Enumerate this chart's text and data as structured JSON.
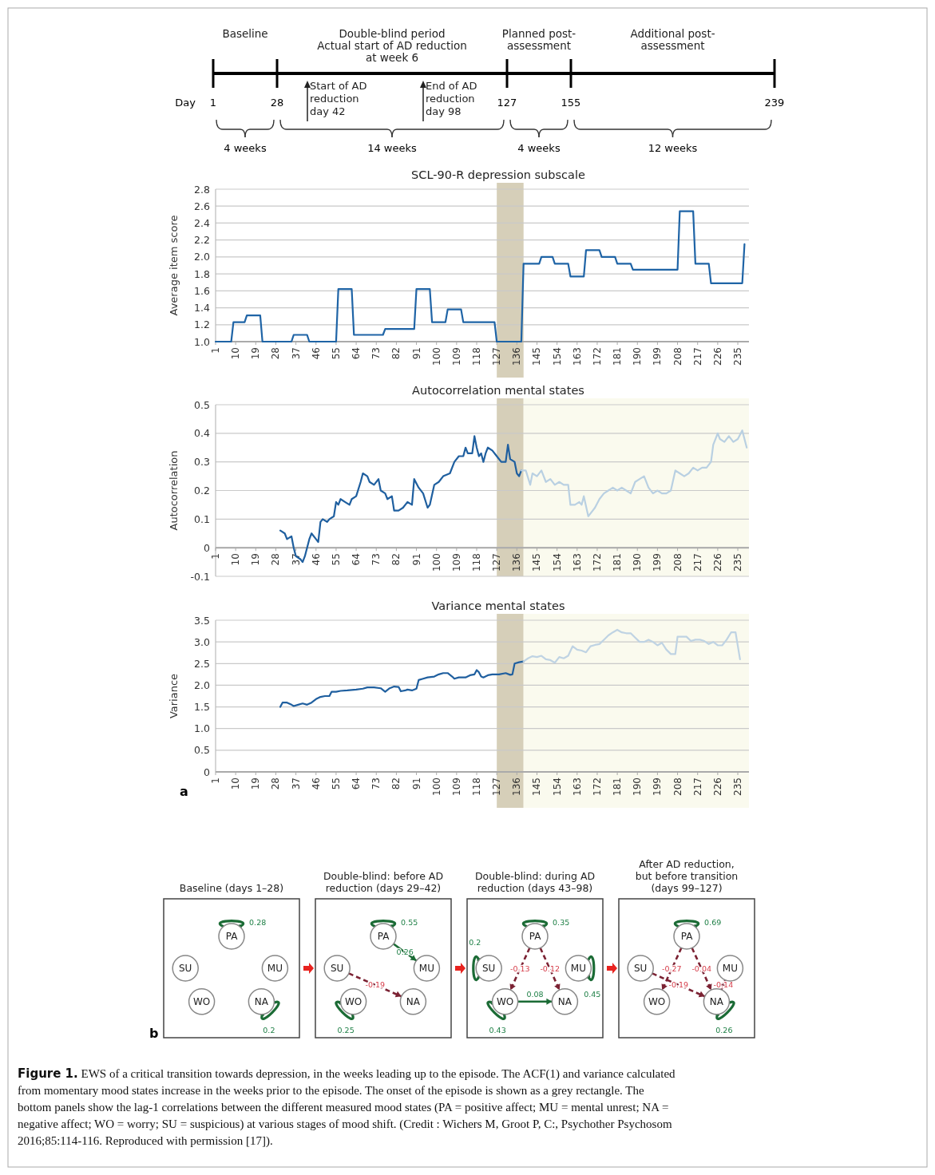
{
  "chart_data": [
    {
      "type": "other",
      "xlabel": "Day",
      "annotations": [
        "Baseline",
        "Double-blind period\nActual start of AD reduction\nat week 6",
        "Planned post-\nassessment",
        "Additional post-\nassessment",
        "Start of AD\nreduction\nday 42",
        "End of AD\nreduction\nday 98",
        "1",
        "28",
        "127",
        "155",
        "239",
        "4 weeks",
        "14 weeks",
        "4 weeks",
        "12 weeks"
      ]
    },
    {
      "type": "line",
      "title": "SCL-90-R depression subscale",
      "ylabel": "Average item score",
      "xlim": [
        1,
        240
      ],
      "xticks": [
        1,
        10,
        19,
        28,
        37,
        46,
        55,
        64,
        73,
        82,
        91,
        100,
        109,
        118,
        127,
        136,
        145,
        154,
        163,
        172,
        181,
        190,
        199,
        208,
        217,
        226,
        235
      ],
      "ylim": [
        1,
        2.8
      ],
      "yticks": [
        {
          "value": 1,
          "label": "1.0"
        },
        {
          "value": 1.2,
          "label": "1.2"
        },
        {
          "value": 1.4,
          "label": "1.4"
        },
        {
          "value": 1.6,
          "label": "1.6"
        },
        {
          "value": 1.8,
          "label": "1.8"
        },
        {
          "value": 2,
          "label": "2.0"
        },
        {
          "value": 2.2,
          "label": "2.2"
        },
        {
          "value": 2.4,
          "label": "2.4"
        },
        {
          "value": 2.6,
          "label": "2.6"
        },
        {
          "value": 2.8,
          "label": "2.8"
        }
      ],
      "grid": "y",
      "bands": [
        {
          "axis": "x",
          "from": 127,
          "to": 139,
          "color": "#d6cfb9"
        }
      ],
      "series": [
        {
          "color": "#1f64a6",
          "x": [
            1,
            8,
            9,
            14,
            15,
            21,
            22,
            35,
            36,
            42,
            43,
            55,
            56,
            62,
            63,
            76,
            77,
            90,
            91,
            97,
            98,
            104,
            105,
            111,
            112,
            126,
            127,
            138,
            139,
            146,
            147,
            152,
            153,
            159,
            160,
            166,
            167,
            173,
            174,
            180,
            181,
            187,
            188,
            208,
            209,
            215,
            216,
            222,
            223,
            237,
            238
          ],
          "values": [
            1,
            1,
            1.23,
            1.23,
            1.31,
            1.31,
            1,
            1,
            1.08,
            1.08,
            1,
            1,
            1.62,
            1.62,
            1.08,
            1.08,
            1.15,
            1.15,
            1.62,
            1.62,
            1.23,
            1.23,
            1.38,
            1.38,
            1.23,
            1.23,
            1,
            1,
            1.92,
            1.92,
            2,
            2,
            1.92,
            1.92,
            1.77,
            1.77,
            2.08,
            2.08,
            2,
            2,
            1.92,
            1.92,
            1.85,
            1.85,
            2.54,
            2.54,
            1.92,
            1.92,
            1.69,
            1.69,
            2.15
          ]
        }
      ]
    },
    {
      "type": "line",
      "title": "Autocorrelation mental states",
      "ylabel": "Autocorrelation",
      "xlim": [
        1,
        240
      ],
      "xticks": [
        1,
        10,
        19,
        28,
        37,
        46,
        55,
        64,
        73,
        82,
        91,
        100,
        109,
        118,
        127,
        136,
        145,
        154,
        163,
        172,
        181,
        190,
        199,
        208,
        217,
        226,
        235
      ],
      "ylim": [
        -0.1,
        0.5
      ],
      "yticks": [
        -0.1,
        0,
        0.1,
        0.2,
        0.3,
        0.4,
        0.5
      ],
      "grid": "y",
      "bands": [
        {
          "axis": "x",
          "from": 127,
          "to": 139,
          "color": "#d6cfb9"
        },
        {
          "axis": "x",
          "from": 139,
          "to": 240,
          "color": "#fafaee"
        }
      ],
      "series": [
        {
          "color": "#1f5f9f",
          "x": [
            30,
            32,
            33,
            35,
            36,
            37,
            39,
            40,
            41,
            43,
            44,
            46,
            47,
            48,
            49,
            51,
            52,
            54,
            55,
            56,
            57,
            59,
            61,
            62,
            64,
            66,
            67,
            69,
            70,
            72,
            74,
            75,
            77,
            78,
            80,
            81,
            83,
            85,
            87,
            89,
            90,
            92,
            94,
            96,
            97,
            99,
            101,
            103,
            106,
            108,
            110,
            112,
            113,
            114,
            116,
            117,
            118,
            119,
            120,
            121,
            122,
            123,
            125,
            127,
            129,
            131,
            132,
            133,
            135,
            136,
            137,
            138
          ],
          "values": [
            0.06,
            0.05,
            0.03,
            0.04,
            0,
            -0.03,
            -0.04,
            -0.05,
            -0.03,
            0.03,
            0.05,
            0.03,
            0.02,
            0.09,
            0.1,
            0.09,
            0.1,
            0.11,
            0.16,
            0.15,
            0.17,
            0.16,
            0.15,
            0.17,
            0.18,
            0.23,
            0.26,
            0.25,
            0.23,
            0.22,
            0.24,
            0.2,
            0.19,
            0.17,
            0.18,
            0.13,
            0.13,
            0.14,
            0.16,
            0.15,
            0.24,
            0.21,
            0.19,
            0.14,
            0.15,
            0.22,
            0.23,
            0.25,
            0.26,
            0.3,
            0.32,
            0.32,
            0.35,
            0.33,
            0.33,
            0.39,
            0.35,
            0.32,
            0.33,
            0.3,
            0.33,
            0.35,
            0.34,
            0.32,
            0.3,
            0.3,
            0.36,
            0.31,
            0.3,
            0.26,
            0.25,
            0.27
          ]
        },
        {
          "color": "#b9d0e2",
          "x": [
            138,
            140,
            142,
            143,
            145,
            147,
            149,
            151,
            153,
            155,
            157,
            159,
            160,
            162,
            164,
            165,
            166,
            168,
            170,
            171,
            173,
            175,
            177,
            179,
            181,
            183,
            185,
            187,
            189,
            191,
            193,
            195,
            197,
            199,
            201,
            203,
            205,
            207,
            209,
            211,
            213,
            215,
            217,
            219,
            221,
            223,
            224,
            226,
            227,
            229,
            231,
            233,
            235,
            237,
            239
          ],
          "values": [
            0.27,
            0.27,
            0.22,
            0.26,
            0.25,
            0.27,
            0.23,
            0.24,
            0.22,
            0.23,
            0.22,
            0.22,
            0.15,
            0.15,
            0.16,
            0.15,
            0.18,
            0.11,
            0.13,
            0.14,
            0.17,
            0.19,
            0.2,
            0.21,
            0.2,
            0.21,
            0.2,
            0.19,
            0.23,
            0.24,
            0.25,
            0.21,
            0.19,
            0.2,
            0.19,
            0.19,
            0.2,
            0.27,
            0.26,
            0.25,
            0.26,
            0.28,
            0.27,
            0.28,
            0.28,
            0.3,
            0.36,
            0.4,
            0.38,
            0.37,
            0.39,
            0.37,
            0.38,
            0.41,
            0.35
          ]
        }
      ]
    },
    {
      "type": "line",
      "title": "Variance mental states",
      "ylabel": "Variance",
      "xlim": [
        1,
        240
      ],
      "xticks": [
        1,
        10,
        19,
        28,
        37,
        46,
        55,
        64,
        73,
        82,
        91,
        100,
        109,
        118,
        127,
        136,
        145,
        154,
        163,
        172,
        181,
        190,
        199,
        208,
        217,
        226,
        235
      ],
      "ylim": [
        0,
        3.5
      ],
      "yticks": [
        0,
        {
          "value": 0.5,
          "label": "0.5"
        },
        {
          "value": 1,
          "label": "1.0"
        },
        {
          "value": 1.5,
          "label": "1.5"
        },
        {
          "value": 2,
          "label": "2.0"
        },
        {
          "value": 2.5,
          "label": "2.5"
        },
        {
          "value": 3,
          "label": "3.0"
        },
        {
          "value": 3.5,
          "label": "3.5"
        }
      ],
      "grid": "y",
      "bands": [
        {
          "axis": "x",
          "from": 127,
          "to": 139,
          "color": "#d6cfb9"
        },
        {
          "axis": "x",
          "from": 139,
          "to": 240,
          "color": "#fafaee"
        }
      ],
      "annotations": [
        "a"
      ],
      "series": [
        {
          "color": "#1f5f9f",
          "x": [
            30,
            31,
            33,
            35,
            36,
            38,
            40,
            42,
            44,
            46,
            48,
            50,
            52,
            53,
            55,
            57,
            60,
            64,
            67,
            69,
            72,
            75,
            77,
            79,
            81,
            83,
            84,
            86,
            87,
            89,
            91,
            92,
            94,
            96,
            99,
            101,
            103,
            105,
            107,
            108,
            110,
            113,
            115,
            117,
            118,
            119,
            120,
            121,
            123,
            125,
            128,
            131,
            133,
            134,
            135,
            137,
            139
          ],
          "values": [
            1.5,
            1.6,
            1.6,
            1.55,
            1.52,
            1.55,
            1.58,
            1.55,
            1.6,
            1.68,
            1.73,
            1.75,
            1.75,
            1.85,
            1.85,
            1.87,
            1.88,
            1.9,
            1.92,
            1.95,
            1.95,
            1.93,
            1.85,
            1.93,
            1.97,
            1.96,
            1.86,
            1.88,
            1.9,
            1.88,
            1.92,
            2.12,
            2.15,
            2.18,
            2.2,
            2.25,
            2.28,
            2.28,
            2.2,
            2.15,
            2.18,
            2.18,
            2.23,
            2.25,
            2.35,
            2.3,
            2.2,
            2.18,
            2.23,
            2.25,
            2.25,
            2.28,
            2.24,
            2.25,
            2.5,
            2.53,
            2.55
          ]
        },
        {
          "color": "#bfd3e3",
          "x": [
            139,
            141,
            143,
            145,
            147,
            149,
            151,
            153,
            155,
            157,
            159,
            161,
            163,
            165,
            167,
            169,
            171,
            173,
            175,
            177,
            179,
            181,
            183,
            185,
            187,
            189,
            191,
            193,
            195,
            197,
            199,
            201,
            203,
            205,
            207,
            208,
            210,
            212,
            214,
            216,
            218,
            220,
            222,
            224,
            226,
            228,
            230,
            232,
            234,
            236
          ],
          "values": [
            2.55,
            2.62,
            2.67,
            2.65,
            2.68,
            2.6,
            2.58,
            2.52,
            2.65,
            2.62,
            2.68,
            2.9,
            2.82,
            2.8,
            2.76,
            2.9,
            2.93,
            2.95,
            3.05,
            3.15,
            3.22,
            3.28,
            3.22,
            3.2,
            3.2,
            3.1,
            3,
            3,
            3.05,
            3,
            2.92,
            2.98,
            2.82,
            2.72,
            2.72,
            3.12,
            3.12,
            3.12,
            3.02,
            3.05,
            3.05,
            3.02,
            2.95,
            3,
            2.92,
            2.92,
            3.05,
            3.22,
            3.22,
            2.6
          ]
        }
      ]
    },
    {
      "type": "other",
      "title": "Baseline (days 1–28)",
      "categories": [
        "PA",
        "SU",
        "MU",
        "WO",
        "NA"
      ],
      "annotations": [
        {
          "text": "0.28",
          "x": "PA",
          "y": "PA"
        },
        {
          "text": "0.2",
          "x": "NA",
          "y": "NA"
        },
        "b"
      ]
    },
    {
      "type": "other",
      "title": "Double-blind: before AD\nreduction (days 29–42)",
      "categories": [
        "PA",
        "SU",
        "MU",
        "WO",
        "NA"
      ],
      "annotations": [
        {
          "text": "0.55",
          "x": "PA",
          "y": "PA"
        },
        {
          "text": "0.26",
          "x": "PA",
          "y": "MU"
        },
        {
          "text": "-0.19",
          "x": "SU",
          "y": "NA"
        },
        {
          "text": "0.25",
          "x": "WO",
          "y": "WO"
        }
      ]
    },
    {
      "type": "other",
      "title": "Double-blind: during AD\nreduction (days 43–98)",
      "categories": [
        "PA",
        "SU",
        "MU",
        "WO",
        "NA"
      ],
      "annotations": [
        {
          "text": "0.35",
          "x": "PA",
          "y": "PA"
        },
        {
          "text": "0.2",
          "x": "SU",
          "y": "SU"
        },
        {
          "text": "0.45",
          "x": "MU",
          "y": "MU"
        },
        {
          "text": "-0.13",
          "x": "PA",
          "y": "WO"
        },
        {
          "text": "-0.12",
          "x": "PA",
          "y": "NA"
        },
        {
          "text": "0.08",
          "x": "WO",
          "y": "NA"
        },
        {
          "text": "0.43",
          "x": "WO",
          "y": "WO"
        }
      ]
    },
    {
      "type": "other",
      "title": "After AD reduction,\nbut before transition\n(days 99–127)",
      "categories": [
        "PA",
        "SU",
        "MU",
        "WO",
        "NA"
      ],
      "annotations": [
        {
          "text": "0.69",
          "x": "PA",
          "y": "PA"
        },
        {
          "text": "-0.27",
          "x": "PA",
          "y": "WO"
        },
        {
          "text": "-0.04",
          "x": "PA",
          "y": "NA"
        },
        {
          "text": "-0.19",
          "x": "SU",
          "y": "NA"
        },
        {
          "text": "-0.14",
          "x": "MU",
          "y": "NA"
        },
        {
          "text": "0.26",
          "x": "NA",
          "y": "NA"
        },
        "Figure 1.",
        "EWS of a critical transition towards depression, in the weeks leading up to the episode. The ACF(1) and variance calculated from momentary mood states increase in the weeks prior to the episode. The onset of the episode is shown as a grey rectangle. The bottom panels show the lag-1 correlations between the different measured mood states (PA = positive affect; MU = mental unrest; NA = negative affect; WO = worry; SU = suspicious) at various stages of mood shift. (Credit : Wichers M, Groot P, C:, Psychother Psychosom 2016;85:114-116. Reproduced with permission [17])."
      ]
    }
  ]
}
